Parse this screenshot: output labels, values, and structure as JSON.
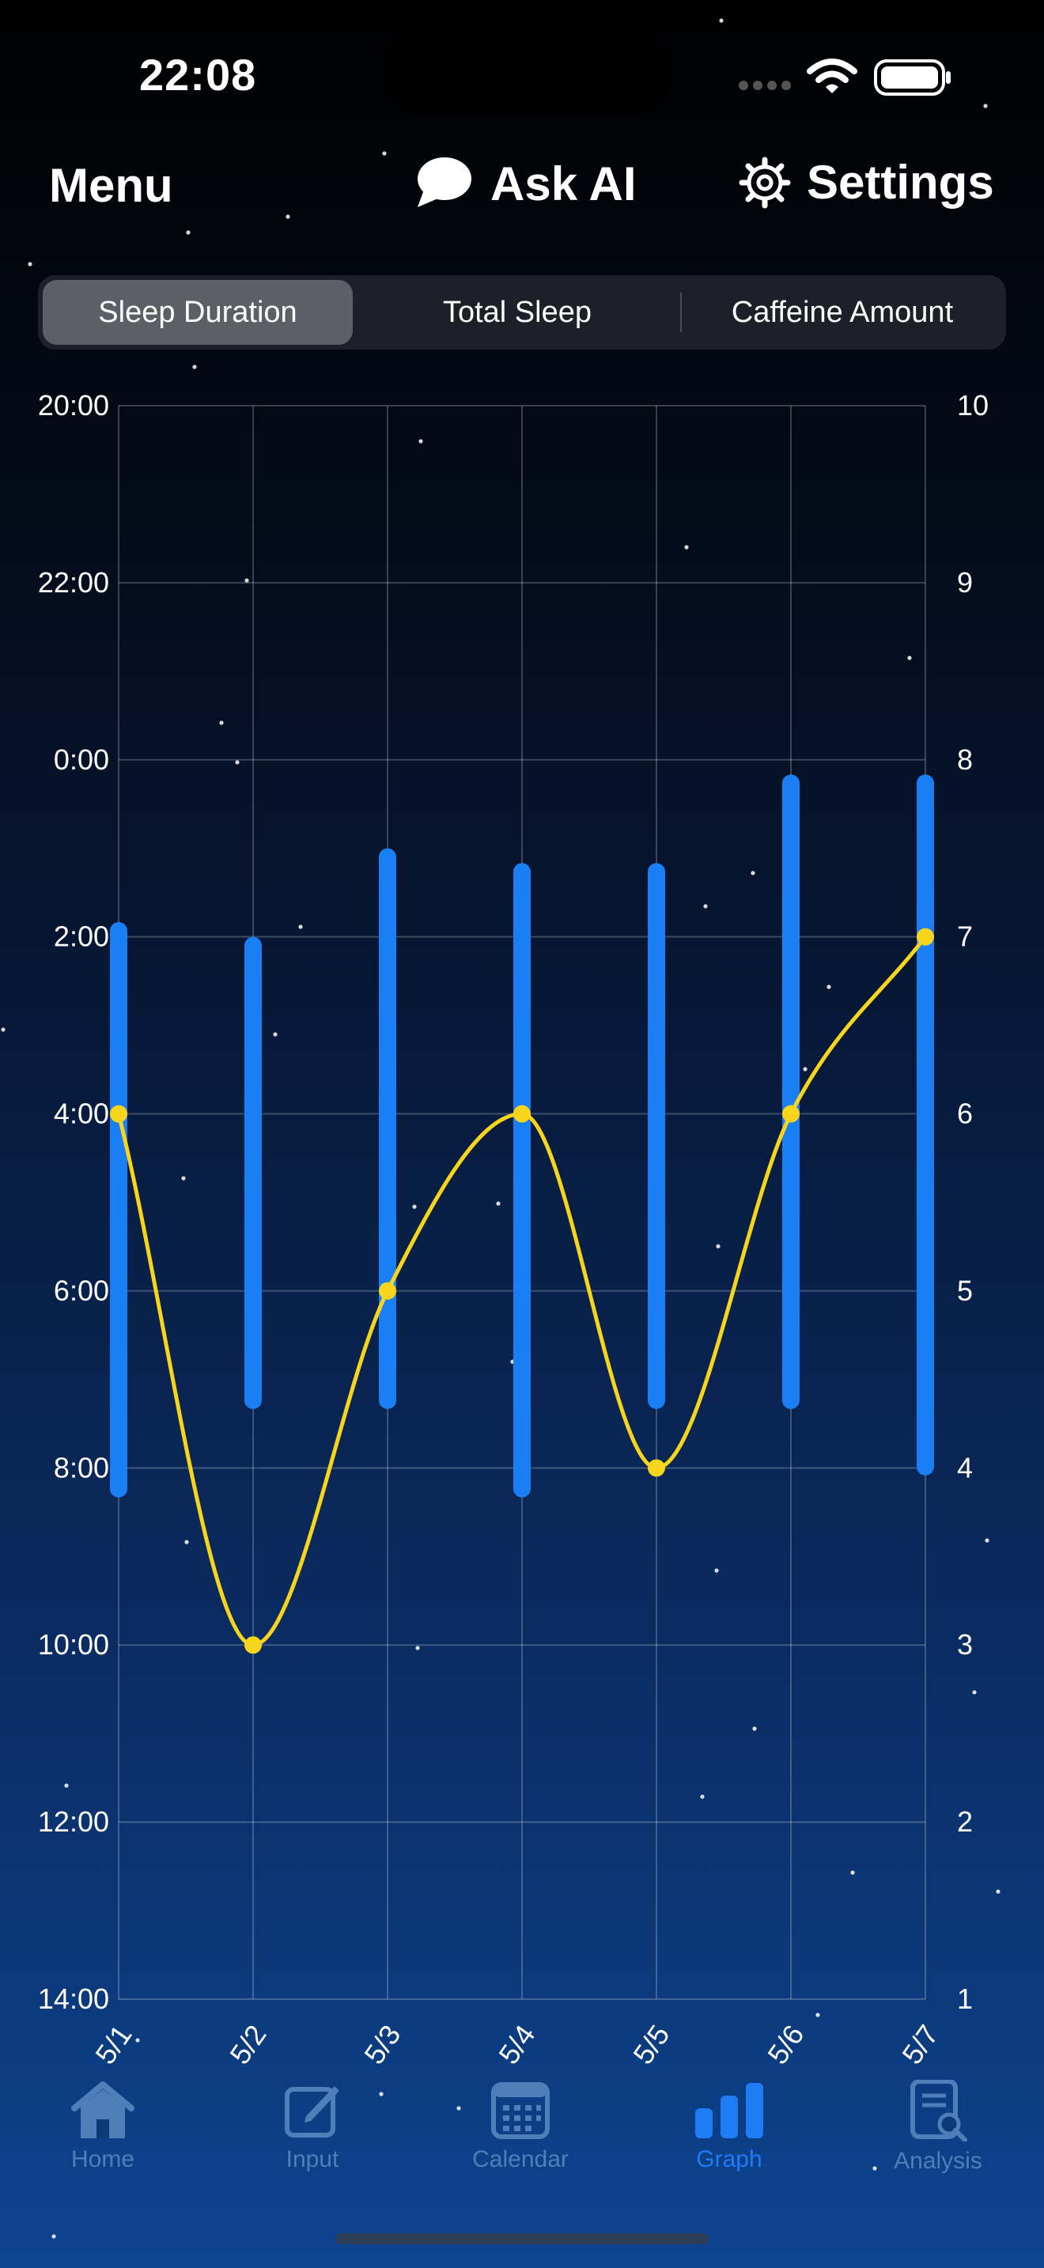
{
  "status": {
    "time": "22:08"
  },
  "nav": {
    "menu": "Menu",
    "ask_ai": "Ask AI",
    "settings": "Settings"
  },
  "segments": [
    "Sleep Duration",
    "Total Sleep",
    "Caffeine Amount"
  ],
  "selected_segment": 0,
  "colors": {
    "sleep_bar": "#1a7ff5",
    "caffeine_line": "#f7d51c",
    "active_tab": "#1e7cf5",
    "inactive_tab": "#4f7fb8"
  },
  "chart_data": {
    "type": "bar+line",
    "categories": [
      "5/1",
      "5/2",
      "5/3",
      "5/4",
      "5/5",
      "5/6",
      "5/7"
    ],
    "left_axis": {
      "ticks": [
        "20:00",
        "22:00",
        "0:00",
        "2:00",
        "4:00",
        "6:00",
        "8:00",
        "10:00",
        "12:00",
        "14:00"
      ]
    },
    "right_axis": {
      "ticks": [
        "10",
        "9",
        "8",
        "7",
        "6",
        "5",
        "4",
        "3",
        "2",
        "1"
      ],
      "range": [
        1,
        10
      ]
    },
    "sleep_bars": [
      {
        "date": "5/1",
        "start": "1:50",
        "end": "8:20"
      },
      {
        "date": "5/2",
        "start": "2:00",
        "end": "7:20"
      },
      {
        "date": "5/3",
        "start": "1:00",
        "end": "7:20"
      },
      {
        "date": "5/4",
        "start": "1:10",
        "end": "8:20"
      },
      {
        "date": "5/5",
        "start": "1:10",
        "end": "7:20"
      },
      {
        "date": "5/6",
        "start": "0:10",
        "end": "7:20"
      },
      {
        "date": "5/7",
        "start": "0:10",
        "end": "8:05"
      }
    ],
    "caffeine": [
      6,
      3,
      5,
      6,
      4,
      6,
      7
    ]
  },
  "tabs": [
    {
      "label": "Home",
      "icon": "house-icon"
    },
    {
      "label": "Input",
      "icon": "pencil-square-icon"
    },
    {
      "label": "Calendar",
      "icon": "calendar-icon"
    },
    {
      "label": "Graph",
      "icon": "bar-chart-icon",
      "active": true
    },
    {
      "label": "Analysis",
      "icon": "document-search-icon"
    }
  ]
}
